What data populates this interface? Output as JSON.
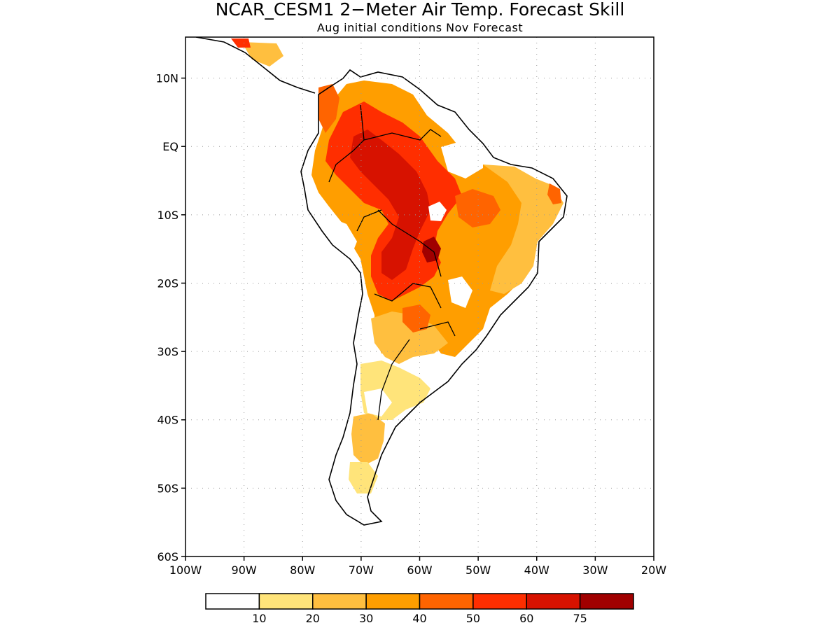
{
  "title": "NCAR_CESM1 2−Meter Air Temp. Forecast Skill",
  "subtitle": "Aug initial conditions  Nov Forecast",
  "map": {
    "lon_range": [
      -100,
      -20
    ],
    "lat_range": [
      -60,
      16
    ],
    "lat_ticks": [
      {
        "value": 10,
        "label": "10N"
      },
      {
        "value": 0,
        "label": "EQ"
      },
      {
        "value": -10,
        "label": "10S"
      },
      {
        "value": -20,
        "label": "20S"
      },
      {
        "value": -30,
        "label": "30S"
      },
      {
        "value": -40,
        "label": "40S"
      },
      {
        "value": -50,
        "label": "50S"
      },
      {
        "value": -60,
        "label": "60S"
      }
    ],
    "lon_ticks": [
      {
        "value": -100,
        "label": "100W"
      },
      {
        "value": -90,
        "label": "90W"
      },
      {
        "value": -80,
        "label": "80W"
      },
      {
        "value": -70,
        "label": "70W"
      },
      {
        "value": -60,
        "label": "60W"
      },
      {
        "value": -50,
        "label": "50W"
      },
      {
        "value": -40,
        "label": "40W"
      },
      {
        "value": -30,
        "label": "30W"
      },
      {
        "value": -20,
        "label": "20W"
      }
    ],
    "grid": "dotted"
  },
  "colorbar": {
    "colors": [
      "#ffffff",
      "#ffe47a",
      "#ffbf3f",
      "#ff9e00",
      "#ff6400",
      "#ff2e00",
      "#d71200",
      "#a00000"
    ],
    "labels": [
      "10",
      "20",
      "30",
      "40",
      "50",
      "60",
      "75"
    ]
  },
  "fields": {
    "white": "#ffffff",
    "c10": "#ffe47a",
    "c20": "#ffbf3f",
    "c30": "#ff9e00",
    "c40": "#ff6400",
    "c50": "#ff2e00",
    "c60": "#d71200",
    "c75": "#a00000"
  }
}
